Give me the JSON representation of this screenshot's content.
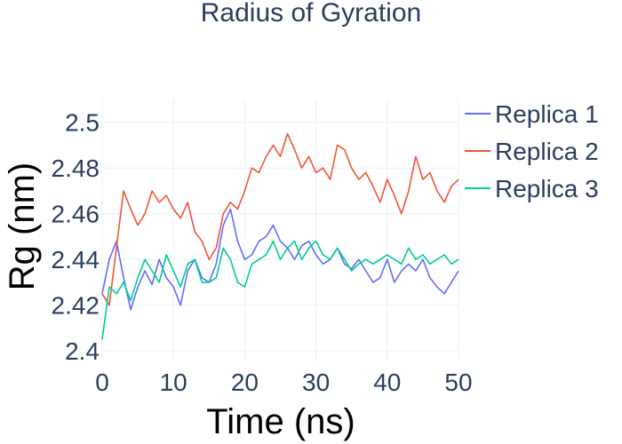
{
  "chart_data": {
    "type": "line",
    "title": "Radius of Gyration",
    "xlabel": "Time (ns)",
    "ylabel": "Rg (nm)",
    "xlim": [
      0,
      50
    ],
    "ylim": [
      2.395,
      2.51
    ],
    "x_ticks": [
      0,
      10,
      20,
      30,
      40,
      50
    ],
    "y_ticks": [
      2.4,
      2.42,
      2.44,
      2.46,
      2.48,
      2.5
    ],
    "grid": true,
    "legend_position": "top-right",
    "x": [
      0,
      1,
      2,
      3,
      4,
      5,
      6,
      7,
      8,
      9,
      10,
      11,
      12,
      13,
      14,
      15,
      16,
      17,
      18,
      19,
      20,
      21,
      22,
      23,
      24,
      25,
      26,
      27,
      28,
      29,
      30,
      31,
      32,
      33,
      34,
      35,
      36,
      37,
      38,
      39,
      40,
      41,
      42,
      43,
      44,
      45,
      46,
      47,
      48,
      49,
      50
    ],
    "series": [
      {
        "name": "Replica 1",
        "color": "#636efa",
        "values": [
          2.425,
          2.44,
          2.448,
          2.432,
          2.418,
          2.428,
          2.435,
          2.429,
          2.44,
          2.432,
          2.428,
          2.42,
          2.435,
          2.44,
          2.432,
          2.43,
          2.438,
          2.455,
          2.462,
          2.448,
          2.44,
          2.442,
          2.448,
          2.45,
          2.455,
          2.448,
          2.445,
          2.44,
          2.446,
          2.448,
          2.442,
          2.438,
          2.44,
          2.445,
          2.438,
          2.436,
          2.44,
          2.435,
          2.43,
          2.432,
          2.44,
          2.43,
          2.435,
          2.438,
          2.435,
          2.44,
          2.432,
          2.428,
          2.425,
          2.43,
          2.435
        ]
      },
      {
        "name": "Replica 2",
        "color": "#ef553b",
        "values": [
          2.425,
          2.42,
          2.445,
          2.47,
          2.462,
          2.455,
          2.46,
          2.47,
          2.465,
          2.468,
          2.462,
          2.458,
          2.465,
          2.452,
          2.448,
          2.44,
          2.445,
          2.46,
          2.465,
          2.462,
          2.47,
          2.48,
          2.478,
          2.485,
          2.49,
          2.485,
          2.495,
          2.488,
          2.48,
          2.485,
          2.478,
          2.48,
          2.475,
          2.49,
          2.488,
          2.48,
          2.475,
          2.478,
          2.472,
          2.465,
          2.475,
          2.468,
          2.46,
          2.47,
          2.485,
          2.475,
          2.478,
          2.47,
          2.465,
          2.472,
          2.475
        ]
      },
      {
        "name": "Replica 3",
        "color": "#00cc96",
        "values": [
          2.405,
          2.428,
          2.425,
          2.43,
          2.422,
          2.432,
          2.44,
          2.435,
          2.43,
          2.442,
          2.435,
          2.428,
          2.438,
          2.44,
          2.43,
          2.43,
          2.432,
          2.445,
          2.44,
          2.43,
          2.428,
          2.438,
          2.44,
          2.442,
          2.448,
          2.44,
          2.445,
          2.448,
          2.44,
          2.445,
          2.448,
          2.442,
          2.44,
          2.445,
          2.44,
          2.435,
          2.438,
          2.44,
          2.438,
          2.44,
          2.442,
          2.44,
          2.438,
          2.445,
          2.44,
          2.442,
          2.438,
          2.44,
          2.442,
          2.438,
          2.44
        ]
      }
    ]
  }
}
